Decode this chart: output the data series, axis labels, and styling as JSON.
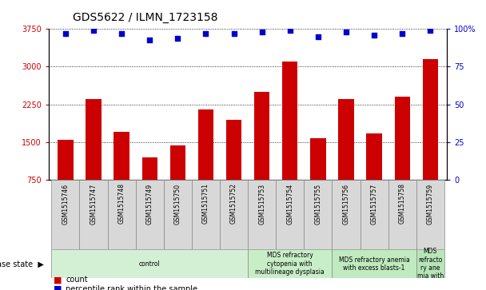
{
  "title": "GDS5622 / ILMN_1723158",
  "samples": [
    "GSM1515746",
    "GSM1515747",
    "GSM1515748",
    "GSM1515749",
    "GSM1515750",
    "GSM1515751",
    "GSM1515752",
    "GSM1515753",
    "GSM1515754",
    "GSM1515755",
    "GSM1515756",
    "GSM1515757",
    "GSM1515758",
    "GSM1515759"
  ],
  "counts": [
    1550,
    2350,
    1700,
    1200,
    1430,
    2150,
    1950,
    2500,
    3100,
    1580,
    2350,
    1680,
    2400,
    3150
  ],
  "percentile_ranks": [
    97,
    99,
    97,
    93,
    94,
    97,
    97,
    98,
    99,
    95,
    98,
    96,
    97,
    99
  ],
  "ylim_left": [
    750,
    3750
  ],
  "ylim_right": [
    0,
    100
  ],
  "yticks_left": [
    750,
    1500,
    2250,
    3000,
    3750
  ],
  "yticks_right": [
    0,
    25,
    50,
    75,
    100
  ],
  "bar_color": "#cc0000",
  "dot_color": "#0000cc",
  "disease_groups": [
    {
      "label": "control",
      "start": 0,
      "end": 7,
      "color": "#d4f0d4"
    },
    {
      "label": "MDS refractory\ncytopenia with\nmultilineage dysplasia",
      "start": 7,
      "end": 10,
      "color": "#c8eec8"
    },
    {
      "label": "MDS refractory anemia\nwith excess blasts-1",
      "start": 10,
      "end": 13,
      "color": "#c0eac0"
    },
    {
      "label": "MDS\nrefracto\nry ane\nmia with",
      "start": 13,
      "end": 14,
      "color": "#b8e5b8"
    }
  ],
  "disease_state_label": "disease state",
  "sample_bg_color": "#d8d8d8",
  "title_fontsize": 10,
  "tick_fontsize": 7,
  "sample_fontsize": 5.5,
  "group_fontsize": 5.5,
  "legend_fontsize": 7
}
